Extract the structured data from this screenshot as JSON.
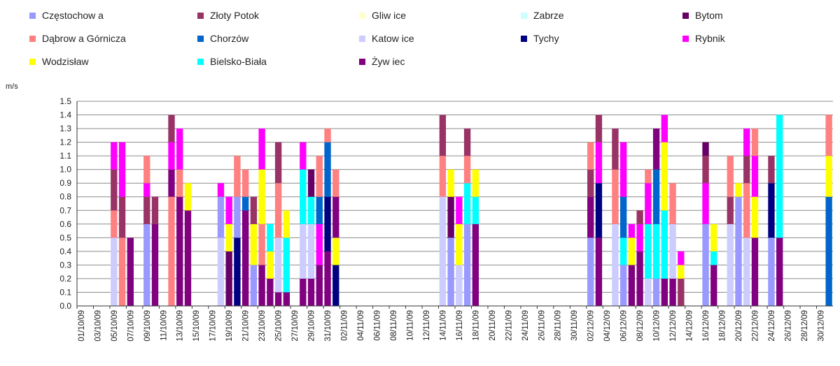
{
  "chart_data": {
    "type": "bar",
    "ylabel": "m/s",
    "ylim": [
      0,
      1.5
    ],
    "ytick_labels": [
      "0.0",
      "0.1",
      "0.2",
      "0.3",
      "0.4",
      "0.5",
      "0.6",
      "0.7",
      "0.8",
      "0.9",
      "1.0",
      "1.1",
      "1.2",
      "1.3",
      "1.4",
      "1.5"
    ],
    "grid": true,
    "legend_placement": "top",
    "x_tick_labels": [
      "01/10/09",
      "03/10/09",
      "05/10/09",
      "07/10/09",
      "09/10/09",
      "11/10/09",
      "13/10/09",
      "15/10/09",
      "17/10/09",
      "19/10/09",
      "21/10/09",
      "23/10/09",
      "25/10/09",
      "27/10/09",
      "29/10/09",
      "31/10/09",
      "02/11/09",
      "04/11/09",
      "06/11/09",
      "08/11/09",
      "10/11/09",
      "12/11/09",
      "14/11/09",
      "16/11/09",
      "18/11/09",
      "20/11/09",
      "22/11/09",
      "24/11/09",
      "26/11/09",
      "28/11/09",
      "30/11/09",
      "02/12/09",
      "04/12/09",
      "06/12/09",
      "08/12/09",
      "10/12/09",
      "12/12/09",
      "14/12/09",
      "16/12/09",
      "18/12/09",
      "20/12/09",
      "22/12/09",
      "24/12/09",
      "26/12/09",
      "28/12/09",
      "30/12/09"
    ],
    "series": [
      {
        "name": "Częstochow a",
        "color": "#9999ff"
      },
      {
        "name": "Złoty Potok",
        "color": "#993366"
      },
      {
        "name": "Gliw ice",
        "color": "#ffffcc"
      },
      {
        "name": "Zabrze",
        "color": "#ccffff"
      },
      {
        "name": "Bytom",
        "color": "#660066"
      },
      {
        "name": "Dąbrow a Górnicza",
        "color": "#ff8080"
      },
      {
        "name": "Chorzów",
        "color": "#0066cc"
      },
      {
        "name": "Katow ice",
        "color": "#ccccff"
      },
      {
        "name": "Tychy",
        "color": "#000080"
      },
      {
        "name": "Rybnik",
        "color": "#ff00ff"
      },
      {
        "name": "Wodzisław",
        "color": "#ffff00"
      },
      {
        "name": "Bielsko-Biała",
        "color": "#00ffff"
      },
      {
        "name": "Żyw iec",
        "color": "#800080"
      }
    ],
    "daily_bars": [
      {
        "date": "05/10/09",
        "top": 1.2,
        "segments": [
          [
            0.5,
            "#ccccff"
          ],
          [
            0.7,
            "#ff8080"
          ],
          [
            1.0,
            "#993366"
          ],
          [
            1.2,
            "#ff00ff"
          ]
        ]
      },
      {
        "date": "06/10/09",
        "top": 1.2,
        "segments": [
          [
            0.5,
            "#ff8080"
          ],
          [
            0.8,
            "#993366"
          ],
          [
            1.2,
            "#ff00ff"
          ]
        ]
      },
      {
        "date": "07/10/09",
        "top": 0.5,
        "segments": [
          [
            0.5,
            "#800080"
          ]
        ]
      },
      {
        "date": "09/10/09",
        "top": 1.1,
        "segments": [
          [
            0.6,
            "#9999ff"
          ],
          [
            0.8,
            "#993366"
          ],
          [
            0.9,
            "#ff00ff"
          ],
          [
            1.1,
            "#ff8080"
          ]
        ]
      },
      {
        "date": "10/10/09",
        "top": 0.8,
        "segments": [
          [
            0.6,
            "#800080"
          ],
          [
            0.8,
            "#993366"
          ]
        ]
      },
      {
        "date": "12/10/09",
        "top": 1.4,
        "segments": [
          [
            0.8,
            "#ff8080"
          ],
          [
            1.0,
            "#800080"
          ],
          [
            1.2,
            "#ff00ff"
          ],
          [
            1.4,
            "#993366"
          ]
        ]
      },
      {
        "date": "13/10/09",
        "top": 1.3,
        "segments": [
          [
            0.8,
            "#800080"
          ],
          [
            1.0,
            "#ff8080"
          ],
          [
            1.3,
            "#ff00ff"
          ]
        ]
      },
      {
        "date": "14/10/09",
        "top": 0.9,
        "segments": [
          [
            0.7,
            "#800080"
          ],
          [
            0.9,
            "#ffff00"
          ]
        ]
      },
      {
        "date": "18/10/09",
        "top": 0.9,
        "segments": [
          [
            0.5,
            "#ccccff"
          ],
          [
            0.8,
            "#9999ff"
          ],
          [
            0.9,
            "#ff00ff"
          ]
        ]
      },
      {
        "date": "19/10/09",
        "top": 0.8,
        "segments": [
          [
            0.4,
            "#660066"
          ],
          [
            0.6,
            "#ffff00"
          ],
          [
            0.8,
            "#ff00ff"
          ]
        ]
      },
      {
        "date": "20/10/09",
        "top": 1.1,
        "segments": [
          [
            0.5,
            "#000080"
          ],
          [
            0.8,
            "#9999ff"
          ],
          [
            1.1,
            "#ff8080"
          ]
        ]
      },
      {
        "date": "21/10/09",
        "top": 1.0,
        "segments": [
          [
            0.7,
            "#800080"
          ],
          [
            0.8,
            "#0066cc"
          ],
          [
            1.0,
            "#ff8080"
          ]
        ]
      },
      {
        "date": "22/10/09",
        "top": 0.8,
        "segments": [
          [
            0.3,
            "#9999ff"
          ],
          [
            0.6,
            "#ffff00"
          ],
          [
            0.8,
            "#993366"
          ]
        ]
      },
      {
        "date": "23/10/09",
        "top": 1.3,
        "segments": [
          [
            0.3,
            "#800080"
          ],
          [
            0.6,
            "#ff8080"
          ],
          [
            1.0,
            "#ffff00"
          ],
          [
            1.3,
            "#ff00ff"
          ]
        ]
      },
      {
        "date": "24/10/09",
        "top": 0.6,
        "segments": [
          [
            0.2,
            "#800080"
          ],
          [
            0.4,
            "#ffff00"
          ],
          [
            0.6,
            "#00ffff"
          ]
        ]
      },
      {
        "date": "25/10/09",
        "top": 1.2,
        "segments": [
          [
            0.1,
            "#800080"
          ],
          [
            0.5,
            "#ccccff"
          ],
          [
            0.9,
            "#ff8080"
          ],
          [
            1.2,
            "#993366"
          ]
        ]
      },
      {
        "date": "26/10/09",
        "top": 0.7,
        "segments": [
          [
            0.1,
            "#800080"
          ],
          [
            0.5,
            "#00ffff"
          ],
          [
            0.7,
            "#ffff00"
          ]
        ]
      },
      {
        "date": "28/10/09",
        "top": 1.2,
        "segments": [
          [
            0.2,
            "#800080"
          ],
          [
            0.6,
            "#ccccff"
          ],
          [
            1.0,
            "#00ffff"
          ],
          [
            1.2,
            "#ff00ff"
          ]
        ]
      },
      {
        "date": "29/10/09",
        "top": 1.0,
        "segments": [
          [
            0.2,
            "#800080"
          ],
          [
            0.6,
            "#ccccff"
          ],
          [
            0.8,
            "#00ffff"
          ],
          [
            1.0,
            "#660066"
          ]
        ]
      },
      {
        "date": "30/10/09",
        "top": 1.1,
        "segments": [
          [
            0.3,
            "#800080"
          ],
          [
            0.6,
            "#ff00ff"
          ],
          [
            0.8,
            "#0066cc"
          ],
          [
            1.1,
            "#ff8080"
          ]
        ]
      },
      {
        "date": "31/10/09",
        "top": 1.3,
        "segments": [
          [
            0.4,
            "#800080"
          ],
          [
            0.8,
            "#000080"
          ],
          [
            1.2,
            "#0066cc"
          ],
          [
            1.3,
            "#ff8080"
          ]
        ]
      },
      {
        "date": "01/11/09",
        "top": 1.0,
        "segments": [
          [
            0.3,
            "#000080"
          ],
          [
            0.5,
            "#ffff00"
          ],
          [
            0.8,
            "#800080"
          ],
          [
            1.0,
            "#ff8080"
          ]
        ]
      },
      {
        "date": "14/11/09",
        "top": 1.4,
        "segments": [
          [
            0.8,
            "#ccccff"
          ],
          [
            1.1,
            "#ff8080"
          ],
          [
            1.4,
            "#993366"
          ]
        ]
      },
      {
        "date": "15/11/09",
        "top": 1.0,
        "segments": [
          [
            0.5,
            "#9999ff"
          ],
          [
            0.8,
            "#660066"
          ],
          [
            1.0,
            "#ffff00"
          ]
        ]
      },
      {
        "date": "16/11/09",
        "top": 0.8,
        "segments": [
          [
            0.3,
            "#ccccff"
          ],
          [
            0.6,
            "#ffff00"
          ],
          [
            0.8,
            "#ff00ff"
          ]
        ]
      },
      {
        "date": "17/11/09",
        "top": 1.3,
        "segments": [
          [
            0.6,
            "#9999ff"
          ],
          [
            0.9,
            "#00ffff"
          ],
          [
            1.1,
            "#ff8080"
          ],
          [
            1.3,
            "#993366"
          ]
        ]
      },
      {
        "date": "18/11/09",
        "top": 1.0,
        "segments": [
          [
            0.6,
            "#800080"
          ],
          [
            0.8,
            "#00ffff"
          ],
          [
            1.0,
            "#ffff00"
          ]
        ]
      },
      {
        "date": "02/12/09",
        "top": 1.2,
        "segments": [
          [
            0.5,
            "#9999ff"
          ],
          [
            0.8,
            "#800080"
          ],
          [
            1.0,
            "#993366"
          ],
          [
            1.2,
            "#ff8080"
          ]
        ]
      },
      {
        "date": "03/12/09",
        "top": 1.4,
        "segments": [
          [
            0.5,
            "#800080"
          ],
          [
            0.9,
            "#000080"
          ],
          [
            1.2,
            "#ff00ff"
          ],
          [
            1.4,
            "#993366"
          ]
        ]
      },
      {
        "date": "05/12/09",
        "top": 1.3,
        "segments": [
          [
            0.6,
            "#ccccff"
          ],
          [
            1.0,
            "#ff8080"
          ],
          [
            1.3,
            "#993366"
          ]
        ]
      },
      {
        "date": "06/12/09",
        "top": 1.2,
        "segments": [
          [
            0.3,
            "#9999ff"
          ],
          [
            0.5,
            "#00ffff"
          ],
          [
            0.8,
            "#0066cc"
          ],
          [
            1.2,
            "#ff00ff"
          ]
        ]
      },
      {
        "date": "07/12/09",
        "top": 0.6,
        "segments": [
          [
            0.3,
            "#800080"
          ],
          [
            0.5,
            "#ffff00"
          ],
          [
            0.6,
            "#ff00ff"
          ]
        ]
      },
      {
        "date": "08/12/09",
        "top": 0.7,
        "segments": [
          [
            0.4,
            "#800080"
          ],
          [
            0.6,
            "#ff00ff"
          ],
          [
            0.7,
            "#993366"
          ]
        ]
      },
      {
        "date": "09/12/09",
        "top": 1.0,
        "segments": [
          [
            0.2,
            "#ccccff"
          ],
          [
            0.6,
            "#00ffff"
          ],
          [
            0.9,
            "#ff00ff"
          ],
          [
            1.0,
            "#ff8080"
          ]
        ]
      },
      {
        "date": "10/12/09",
        "top": 1.3,
        "segments": [
          [
            0.2,
            "#9999ff"
          ],
          [
            0.6,
            "#00ffff"
          ],
          [
            1.0,
            "#0066cc"
          ],
          [
            1.3,
            "#800080"
          ]
        ]
      },
      {
        "date": "11/12/09",
        "top": 1.4,
        "segments": [
          [
            0.2,
            "#800080"
          ],
          [
            0.7,
            "#00ffff"
          ],
          [
            1.2,
            "#ffff00"
          ],
          [
            1.4,
            "#ff00ff"
          ]
        ]
      },
      {
        "date": "12/12/09",
        "top": 0.9,
        "segments": [
          [
            0.2,
            "#800080"
          ],
          [
            0.6,
            "#ccccff"
          ],
          [
            0.9,
            "#ff8080"
          ]
        ]
      },
      {
        "date": "13/12/09",
        "top": 0.4,
        "segments": [
          [
            0.2,
            "#993366"
          ],
          [
            0.3,
            "#ffff00"
          ],
          [
            0.4,
            "#ff00ff"
          ]
        ]
      },
      {
        "date": "16/12/09",
        "top": 1.2,
        "segments": [
          [
            0.6,
            "#9999ff"
          ],
          [
            0.9,
            "#ff00ff"
          ],
          [
            1.1,
            "#993366"
          ],
          [
            1.2,
            "#660066"
          ]
        ]
      },
      {
        "date": "17/12/09",
        "top": 0.6,
        "segments": [
          [
            0.3,
            "#800080"
          ],
          [
            0.4,
            "#00ffff"
          ],
          [
            0.6,
            "#ffff00"
          ]
        ]
      },
      {
        "date": "19/12/09",
        "top": 1.1,
        "segments": [
          [
            0.6,
            "#ccccff"
          ],
          [
            0.8,
            "#993366"
          ],
          [
            1.1,
            "#ff8080"
          ]
        ]
      },
      {
        "date": "20/12/09",
        "top": 0.9,
        "segments": [
          [
            0.8,
            "#9999ff"
          ],
          [
            0.9,
            "#ffff00"
          ]
        ]
      },
      {
        "date": "21/12/09",
        "top": 1.3,
        "segments": [
          [
            0.5,
            "#ccccff"
          ],
          [
            0.9,
            "#ff8080"
          ],
          [
            1.1,
            "#993366"
          ],
          [
            1.3,
            "#ff00ff"
          ]
        ]
      },
      {
        "date": "22/12/09",
        "top": 1.3,
        "segments": [
          [
            0.5,
            "#800080"
          ],
          [
            0.8,
            "#ffff00"
          ],
          [
            1.1,
            "#ff00ff"
          ],
          [
            1.3,
            "#ff8080"
          ]
        ]
      },
      {
        "date": "24/12/09",
        "top": 1.1,
        "segments": [
          [
            0.5,
            "#9999ff"
          ],
          [
            0.9,
            "#000080"
          ],
          [
            1.1,
            "#993366"
          ]
        ]
      },
      {
        "date": "25/12/09",
        "top": 1.4,
        "segments": [
          [
            0.5,
            "#800080"
          ],
          [
            1.0,
            "#00ffff"
          ],
          [
            1.4,
            "#00ffff"
          ]
        ]
      },
      {
        "date": "31/12/09",
        "top": 1.4,
        "segments": [
          [
            0.8,
            "#0066cc"
          ],
          [
            1.1,
            "#ffff00"
          ],
          [
            1.4,
            "#ff8080"
          ]
        ]
      }
    ]
  }
}
